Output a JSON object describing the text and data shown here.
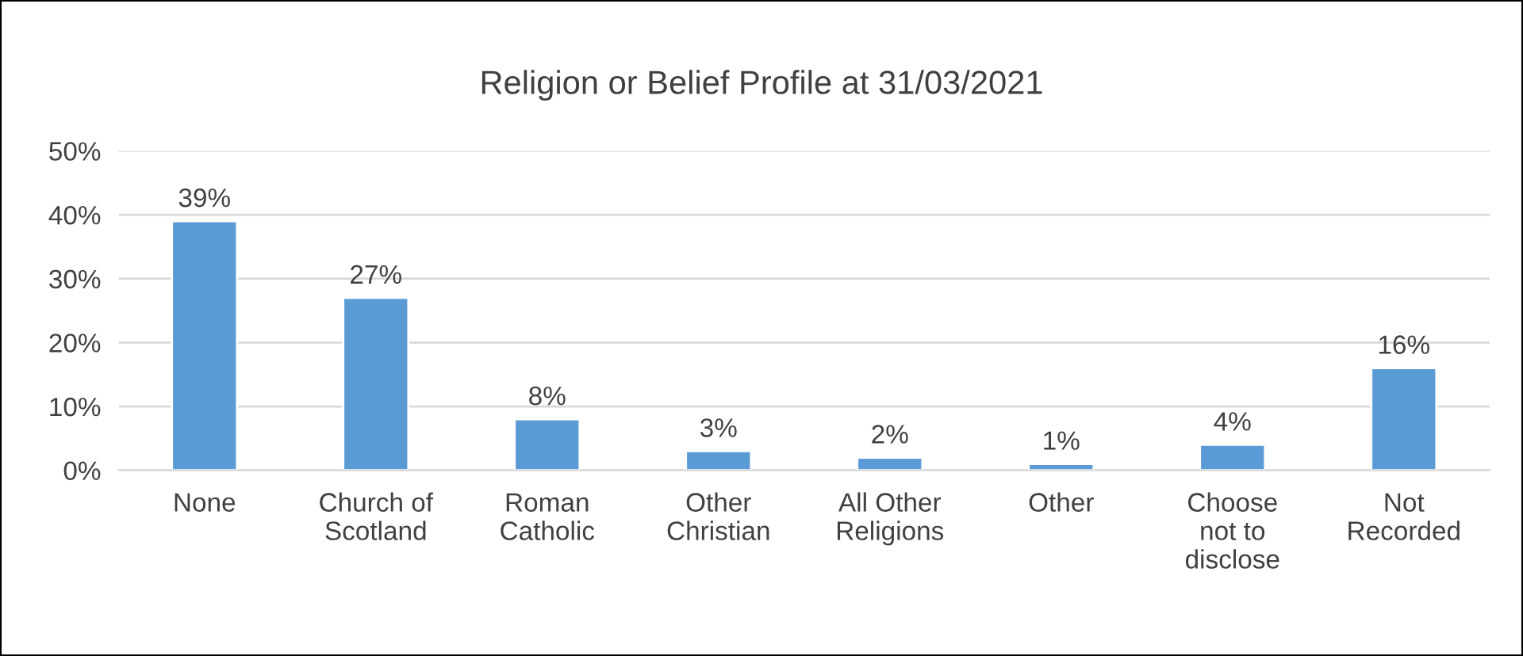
{
  "chart_data": {
    "type": "bar",
    "title": "Religion or Belief Profile at 31/03/2021",
    "categories": [
      "None",
      "Church of\nScotland",
      "Roman\nCatholic",
      "Other\nChristian",
      "All Other\nReligions",
      "Other",
      "Choose\nnot to\ndisclose",
      "Not\nRecorded"
    ],
    "values": [
      39,
      27,
      8,
      3,
      2,
      1,
      4,
      16
    ],
    "value_labels": [
      "39%",
      "27%",
      "8%",
      "3%",
      "2%",
      "1%",
      "4%",
      "16%"
    ],
    "color": "#5b9bd5",
    "ylim": [
      0,
      50
    ],
    "yticks": [
      {
        "value": 0,
        "label": "0%"
      },
      {
        "value": 10,
        "label": "10%"
      },
      {
        "value": 20,
        "label": "20%"
      },
      {
        "value": 30,
        "label": "30%"
      },
      {
        "value": 40,
        "label": "40%"
      },
      {
        "value": 50,
        "label": "50%"
      }
    ],
    "grid": "y",
    "legend": false
  }
}
